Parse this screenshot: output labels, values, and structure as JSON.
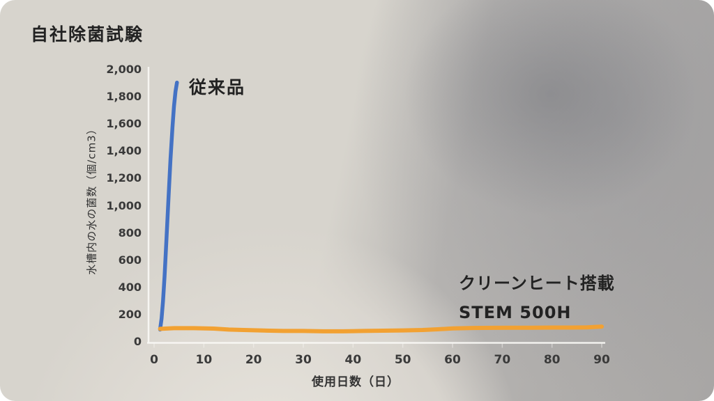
{
  "chart_data": {
    "type": "line",
    "title": "自社除菌試験",
    "xlabel": "使用日数（日）",
    "ylabel": "水槽内の水の菌数（個/cm3）",
    "xlim": [
      0,
      90
    ],
    "ylim": [
      0,
      2000
    ],
    "x_ticks": [
      0,
      10,
      20,
      30,
      40,
      50,
      60,
      70,
      80,
      90
    ],
    "x_tick_labels": [
      "0",
      "10",
      "20",
      "30",
      "40",
      "50",
      "60",
      "70",
      "80",
      "90"
    ],
    "y_ticks": [
      0,
      200,
      400,
      600,
      800,
      1000,
      1200,
      1400,
      1600,
      1800,
      2000
    ],
    "y_tick_labels": [
      "0",
      "200",
      "400",
      "600",
      "800",
      "1,000",
      "1,200",
      "1,400",
      "1,600",
      "1,800",
      "2,000"
    ],
    "grid": false,
    "legend_position": "inline-annotations",
    "series": [
      {
        "id": "conventional-product",
        "name": "従来品",
        "color": "#4472C4",
        "points": [
          [
            1.2,
            90
          ],
          [
            1.5,
            170
          ],
          [
            1.8,
            300
          ],
          [
            2.1,
            480
          ],
          [
            2.5,
            760
          ],
          [
            2.9,
            1060
          ],
          [
            3.3,
            1340
          ],
          [
            3.7,
            1580
          ],
          [
            4.0,
            1730
          ],
          [
            4.3,
            1840
          ],
          [
            4.6,
            1905
          ]
        ]
      },
      {
        "id": "stem-500h",
        "name": "クリーンヒート搭載 STEM 500H",
        "label_line1": "クリーンヒート搭載",
        "label_line2": "STEM 500H",
        "color": "#F2A132",
        "points": [
          [
            1.2,
            95
          ],
          [
            4,
            100
          ],
          [
            8,
            100
          ],
          [
            12,
            97
          ],
          [
            15,
            90
          ],
          [
            18,
            87
          ],
          [
            22,
            83
          ],
          [
            26,
            80
          ],
          [
            30,
            80
          ],
          [
            34,
            77
          ],
          [
            38,
            77
          ],
          [
            42,
            80
          ],
          [
            46,
            82
          ],
          [
            50,
            84
          ],
          [
            54,
            87
          ],
          [
            57,
            92
          ],
          [
            60,
            98
          ],
          [
            64,
            102
          ],
          [
            68,
            103
          ],
          [
            72,
            104
          ],
          [
            76,
            104
          ],
          [
            80,
            105
          ],
          [
            84,
            105
          ],
          [
            87,
            106
          ],
          [
            90,
            112
          ]
        ]
      }
    ],
    "annotations": [
      {
        "text": "従来品",
        "series": "conventional-product"
      },
      {
        "text": "クリーンヒート搭載 STEM 500H",
        "series": "stem-500h"
      }
    ]
  },
  "colors": {
    "conventional_line": "#4472C4",
    "stem_line": "#F2A132",
    "axis_line": "#FAF9F6",
    "tick_text": "#3A3A3A",
    "title_text": "#222222"
  }
}
